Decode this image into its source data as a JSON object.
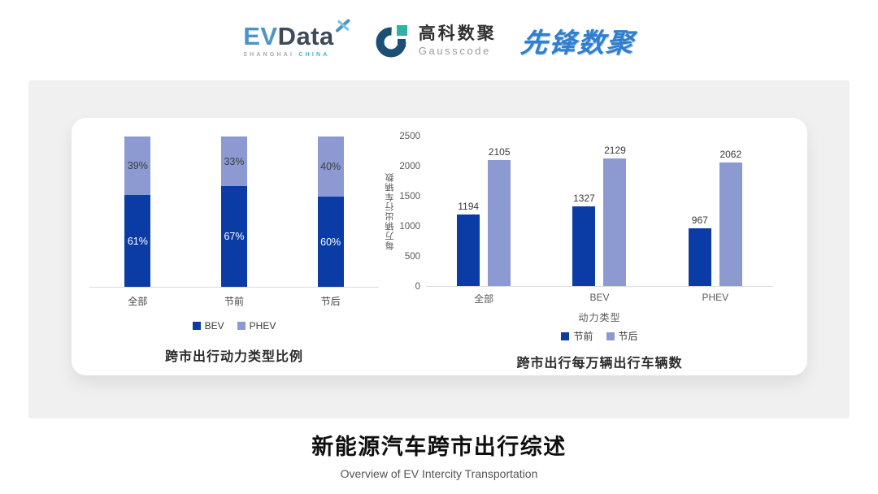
{
  "header": {
    "evdata": {
      "ev": "EV",
      "data": "Data",
      "sub_left": "SHANGHAI",
      "sub_right": "CHINA"
    },
    "gausscode": {
      "cn": "高科数聚",
      "en": "Gausscode"
    },
    "pioneer": {
      "text": "先锋数聚"
    }
  },
  "colors": {
    "series_dark": "#0B3CA6",
    "series_light": "#8C9AD1",
    "axis_text": "#595959",
    "panel_bg": "#F0F0F1"
  },
  "chart_data": [
    {
      "type": "bar",
      "subtype": "stacked-100-percent",
      "caption": "跨市出行动力类型比例",
      "categories": [
        "全部",
        "节前",
        "节后"
      ],
      "series": [
        {
          "name": "BEV",
          "values": [
            61,
            67,
            60
          ],
          "color": "#0B3CA6",
          "label_color": "#FFFFFF"
        },
        {
          "name": "PHEV",
          "values": [
            39,
            33,
            40
          ],
          "color": "#8C9AD1",
          "label_color": "#3D3D3D"
        }
      ],
      "value_suffix": "%",
      "ylim": [
        0,
        100
      ],
      "legend_position": "bottom",
      "grid": false
    },
    {
      "type": "bar",
      "subtype": "grouped",
      "caption": "跨市出行每万辆出行车辆数",
      "xlabel": "动力类型",
      "ylabel": "每万辆出行车辆数",
      "categories": [
        "全部",
        "BEV",
        "PHEV"
      ],
      "series": [
        {
          "name": "节前",
          "values": [
            1194,
            1327,
            967
          ],
          "color": "#0B3CA6"
        },
        {
          "name": "节后",
          "values": [
            2105,
            2129,
            2062
          ],
          "color": "#8C9AD1"
        }
      ],
      "ylim": [
        0,
        2500
      ],
      "yticks": [
        0,
        500,
        1000,
        1500,
        2000,
        2500
      ],
      "legend_position": "bottom",
      "grid": false
    }
  ],
  "footer": {
    "title": "新能源汽车跨市出行综述",
    "subtitle": "Overview of EV Intercity Transportation"
  }
}
